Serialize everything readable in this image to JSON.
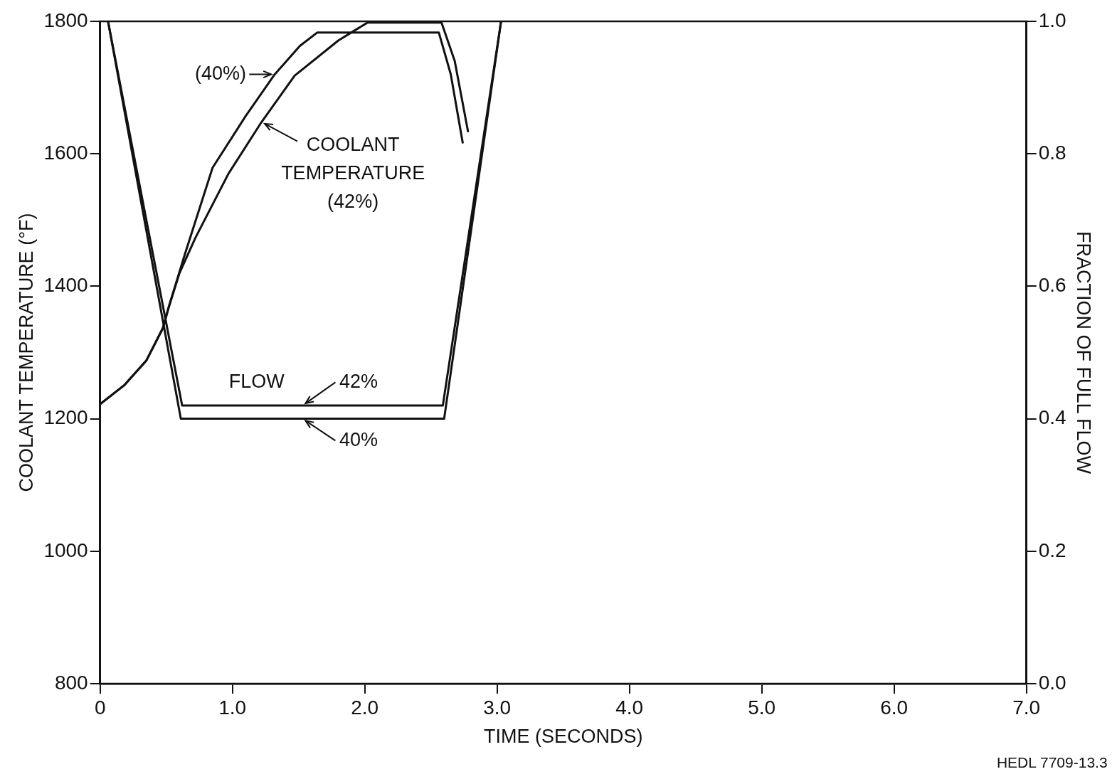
{
  "chart_data": {
    "type": "line",
    "xlabel": "TIME (SECONDS)",
    "ylabel": "COOLANT TEMPERATURE (°F)",
    "y2label": "FRACTION OF FULL FLOW",
    "xlim": [
      0,
      7
    ],
    "xticks": [
      {
        "value": 0,
        "label": "0"
      },
      {
        "value": 1,
        "label": "1.0"
      },
      {
        "value": 2,
        "label": "2.0"
      },
      {
        "value": 3,
        "label": "3.0"
      },
      {
        "value": 4,
        "label": "4.0"
      },
      {
        "value": 5,
        "label": "5.0"
      },
      {
        "value": 6,
        "label": "6.0"
      },
      {
        "value": 7,
        "label": "7.0"
      }
    ],
    "ylim": [
      800,
      1800
    ],
    "yticks": [
      800,
      1000,
      1200,
      1400,
      1600,
      1800
    ],
    "y2lim": [
      0,
      1
    ],
    "y2ticks": [
      {
        "value": 0,
        "label": "0.0"
      },
      {
        "value": 0.2,
        "label": "0.2"
      },
      {
        "value": 0.4,
        "label": "0.4"
      },
      {
        "value": 0.6,
        "label": "0.6"
      },
      {
        "value": 0.8,
        "label": "0.8"
      },
      {
        "value": 1,
        "label": "1.0"
      }
    ],
    "grid": false,
    "legend": false,
    "marker": "none",
    "line_style": "solid",
    "series": [
      {
        "color": "#111111",
        "x": [
          0,
          0.185,
          0.35,
          0.475,
          0.515,
          0.64,
          0.85,
          1.1,
          1.32,
          1.51,
          1.64,
          2.56,
          2.65,
          2.74
        ],
        "values": [
          1222,
          1251,
          1288,
          1337,
          1366,
          1448,
          1579,
          1657,
          1720,
          1763,
          1783,
          1783,
          1720,
          1617
        ]
      },
      {
        "color": "#111111",
        "x": [
          0,
          0.185,
          0.35,
          0.475,
          0.515,
          0.6,
          0.72,
          0.97,
          1.22,
          1.47,
          1.8,
          1.93,
          2.02,
          2.58,
          2.68,
          2.78
        ],
        "values": [
          1222,
          1251,
          1288,
          1337,
          1366,
          1420,
          1473,
          1570,
          1648,
          1718,
          1771,
          1787,
          1798,
          1798,
          1740,
          1634
        ]
      },
      {
        "color": "#111111",
        "axis": "y2",
        "x": [
          0.06,
          0.62,
          2.59,
          3.03
        ],
        "values": [
          1,
          0.42,
          0.42,
          1
        ]
      },
      {
        "color": "#111111",
        "axis": "y2",
        "x": [
          0.06,
          0.61,
          2.6,
          3.03
        ],
        "values": [
          1,
          0.4,
          0.4,
          1
        ]
      }
    ],
    "annotations": [
      {
        "text": "(40%)",
        "x": 1.32,
        "y": 1720
      },
      {
        "text": "COOLANT TEMPERATURE (42%)",
        "x": 1.22,
        "y": 1648
      },
      "FLOW",
      {
        "text": "42%",
        "x": 1.53,
        "y": 1220
      },
      {
        "text": "40%",
        "x": 1.53,
        "y": 1200
      },
      "HEDL 7709-13.3"
    ]
  }
}
